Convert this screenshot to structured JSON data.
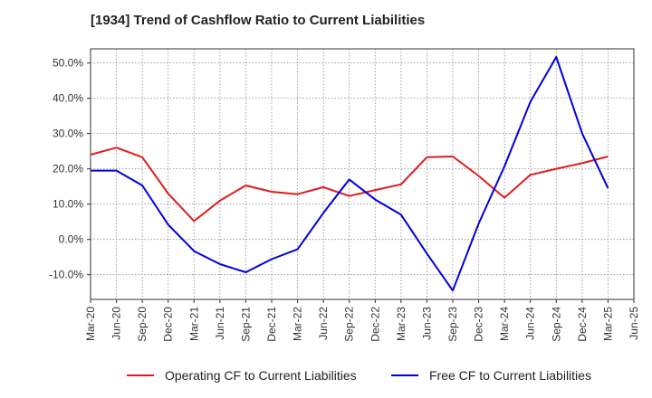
{
  "title": "[1934]  Trend of Cashflow Ratio to Current Liabilities",
  "chart_data": {
    "type": "line",
    "x": [
      "Mar-20",
      "Jun-20",
      "Sep-20",
      "Dec-20",
      "Mar-21",
      "Jun-21",
      "Sep-21",
      "Dec-21",
      "Mar-22",
      "Jun-22",
      "Sep-22",
      "Dec-22",
      "Mar-23",
      "Jun-23",
      "Sep-23",
      "Dec-23",
      "Mar-24",
      "Jun-24",
      "Sep-24",
      "Dec-24",
      "Mar-25",
      "Jun-25"
    ],
    "x_ticks": [
      "Mar-20",
      "Jun-20",
      "Sep-20",
      "Dec-20",
      "Mar-21",
      "Jun-21",
      "Sep-21",
      "Dec-21",
      "Mar-22",
      "Jun-22",
      "Sep-22",
      "Dec-22",
      "Mar-23",
      "Jun-23",
      "Sep-23",
      "Dec-23",
      "Mar-24",
      "Jun-24",
      "Sep-24",
      "Dec-24",
      "Mar-25",
      "Jun-25"
    ],
    "y_ticks": [
      "-10.0%",
      "0.0%",
      "10.0%",
      "20.0%",
      "30.0%",
      "40.0%",
      "50.0%"
    ],
    "y_tick_values": [
      -10,
      0,
      10,
      20,
      30,
      40,
      50
    ],
    "ylim": [
      -17,
      54
    ],
    "grid": true,
    "legend_placement": "bottom",
    "series": [
      {
        "name": "Operating CF to Current Liabilities",
        "color": "#e31a1c",
        "values": [
          24.0,
          26.0,
          23.3,
          13.0,
          5.2,
          11.0,
          15.3,
          13.5,
          12.8,
          14.8,
          12.3,
          14.0,
          15.6,
          23.3,
          23.5,
          18.0,
          11.8,
          18.3,
          20.0,
          21.6,
          23.5,
          null
        ]
      },
      {
        "name": "Free CF to Current Liabilities",
        "color": "#0000dd",
        "values": [
          19.5,
          19.5,
          15.3,
          4.2,
          -3.3,
          -7.0,
          -9.3,
          -5.6,
          -2.8,
          7.5,
          17.0,
          11.3,
          7.0,
          -4.0,
          -14.5,
          4.5,
          20.7,
          39.0,
          51.7,
          30.0,
          14.5,
          null
        ]
      }
    ]
  }
}
